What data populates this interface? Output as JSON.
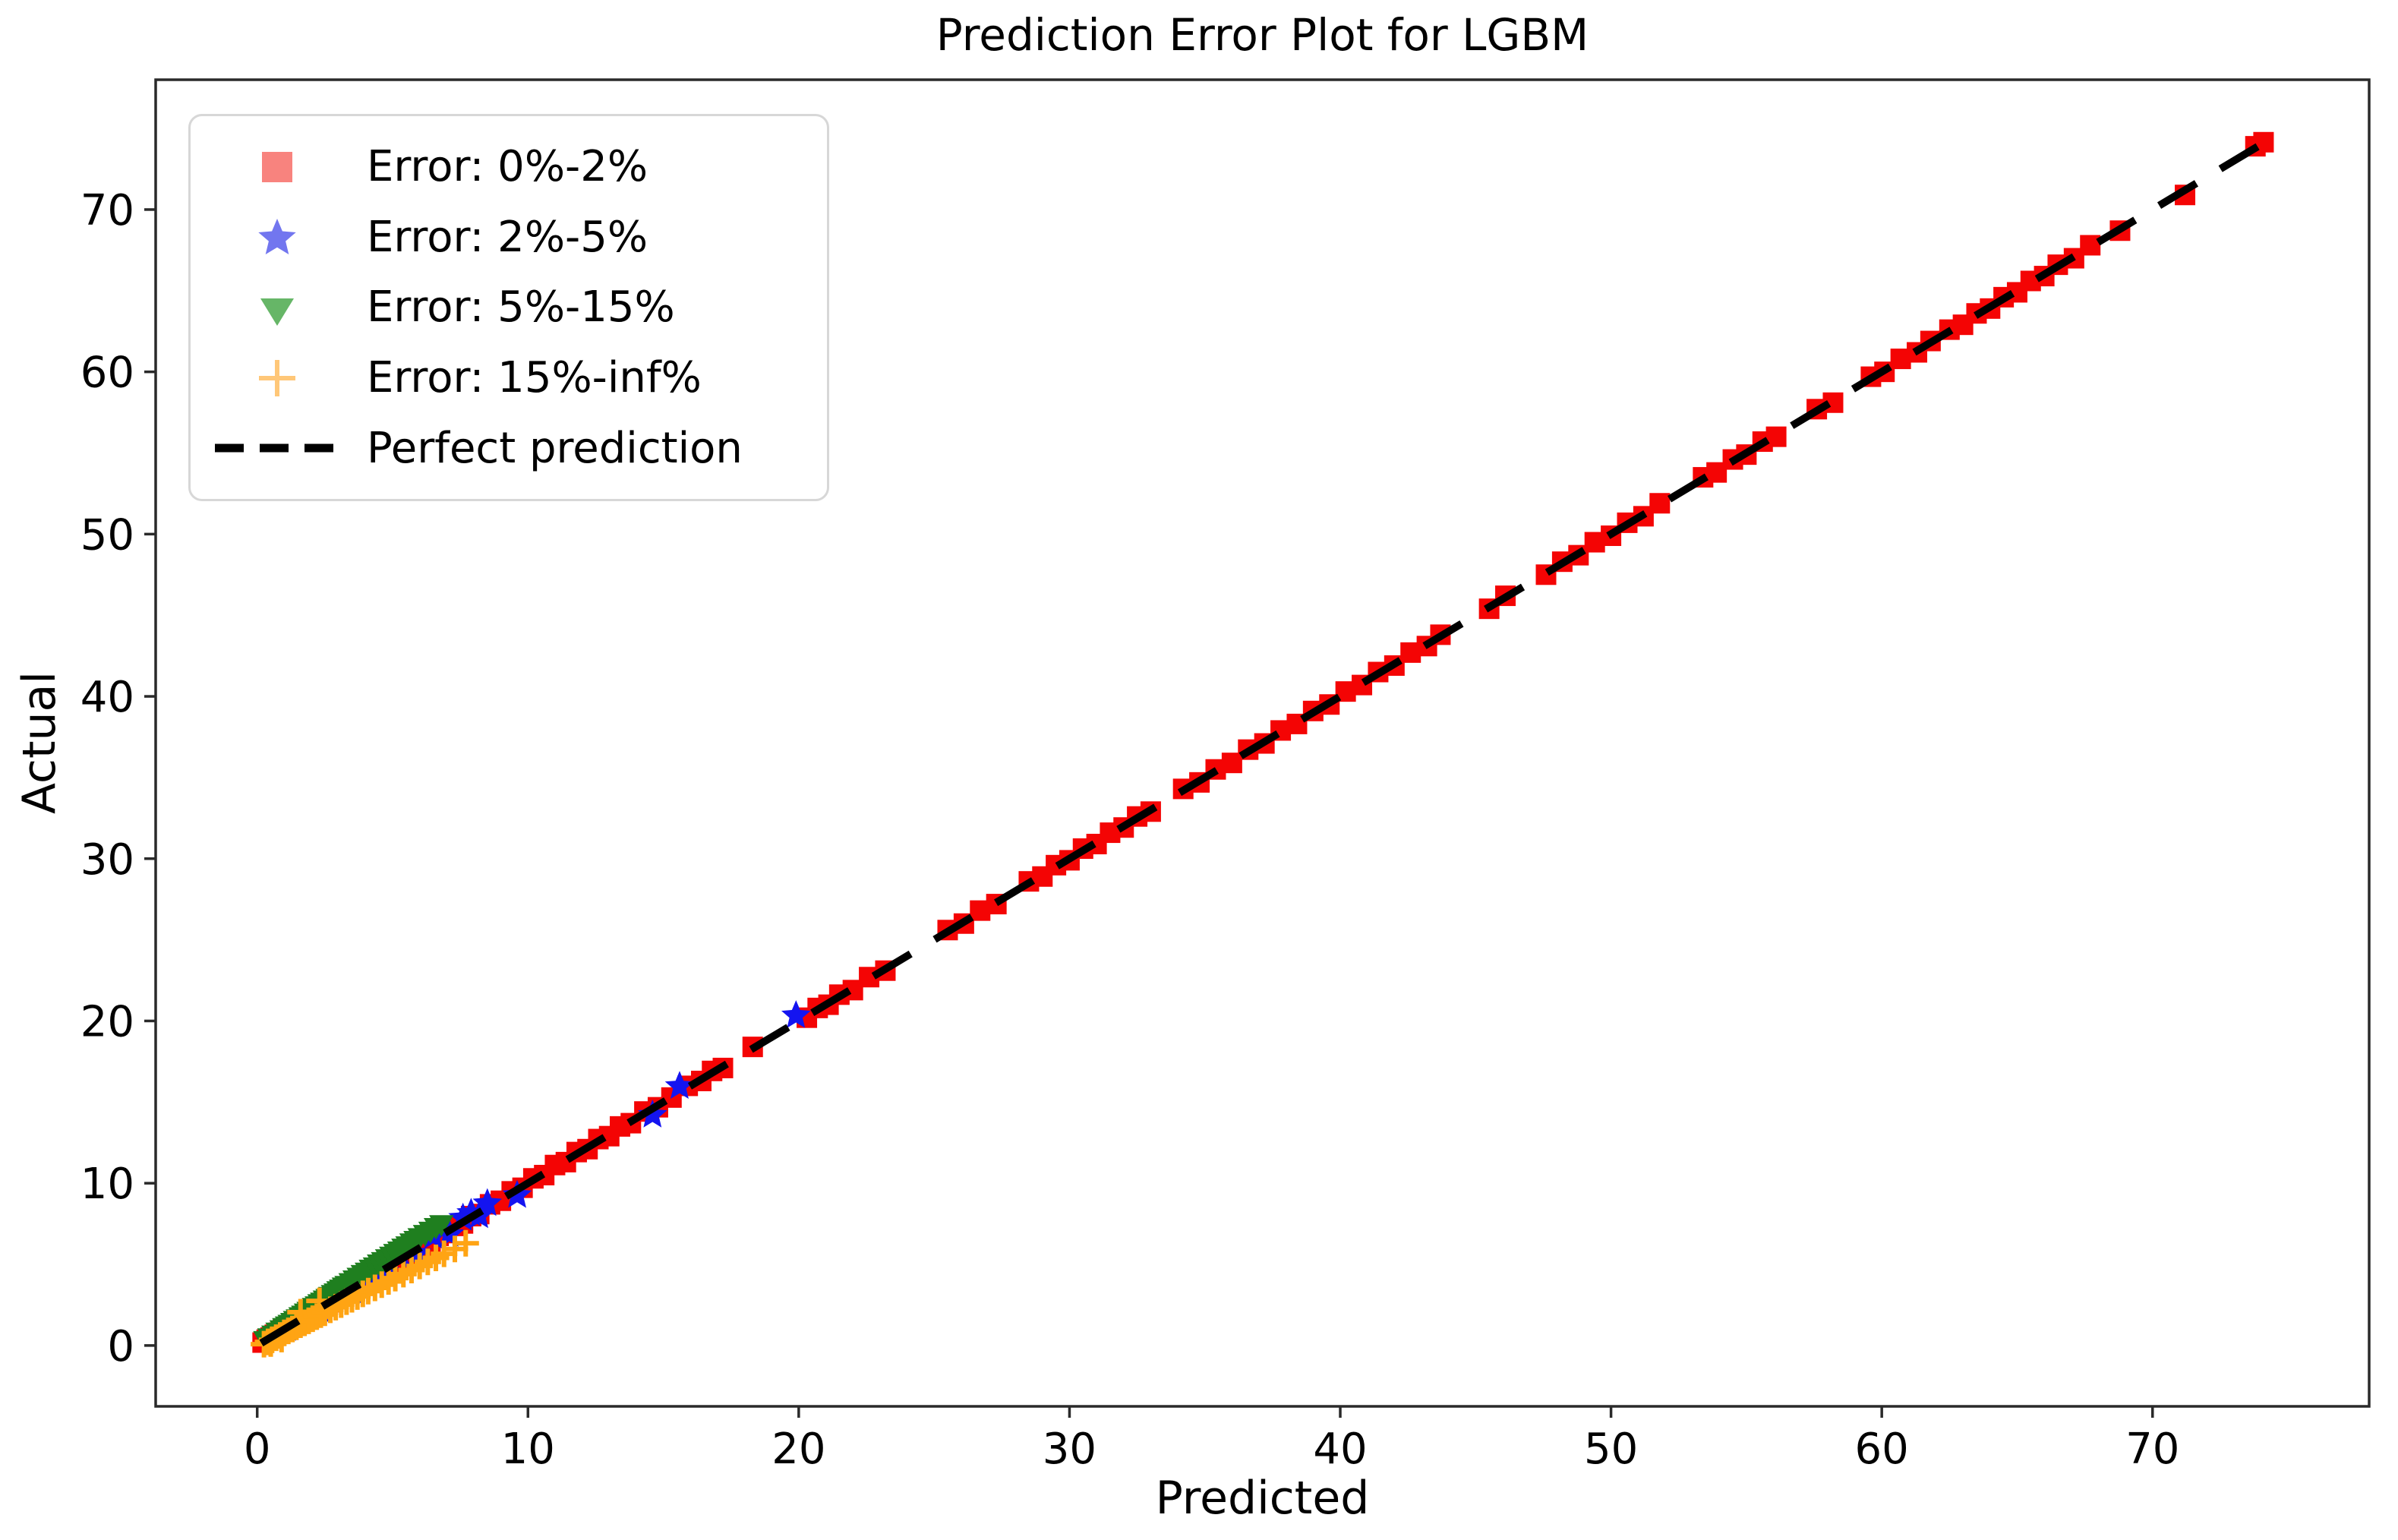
{
  "chart_data": {
    "type": "scatter",
    "title": "Prediction Error Plot for LGBM",
    "xlabel": "Predicted",
    "ylabel": "Actual",
    "xlim": [
      -3.75,
      78.0
    ],
    "ylim": [
      -3.75,
      78.0
    ],
    "x_ticks": [
      0,
      10,
      20,
      30,
      40,
      50,
      60,
      70
    ],
    "y_ticks": [
      0,
      10,
      20,
      30,
      40,
      50,
      60,
      70
    ],
    "grid": false,
    "legend_position": "upper left",
    "axis_color": "#2a2a2a",
    "tick_label_color": "#000000",
    "series": [
      {
        "name": "Error: 0%-2%",
        "marker": "square",
        "color": "#f40404",
        "points": [
          [
            0.2,
            0.18
          ],
          [
            0.35,
            0.36
          ],
          [
            0.5,
            0.49
          ],
          [
            0.65,
            0.66
          ],
          [
            0.8,
            0.79
          ],
          [
            0.95,
            0.96
          ],
          [
            1.1,
            1.08
          ],
          [
            1.3,
            1.32
          ],
          [
            1.5,
            1.48
          ],
          [
            1.7,
            1.72
          ],
          [
            1.9,
            1.88
          ],
          [
            2.1,
            2.12
          ],
          [
            2.3,
            2.28
          ],
          [
            2.5,
            2.52
          ],
          [
            2.7,
            2.67
          ],
          [
            2.9,
            2.93
          ],
          [
            3.1,
            3.07
          ],
          [
            3.3,
            3.33
          ],
          [
            3.5,
            3.46
          ],
          [
            3.7,
            3.73
          ],
          [
            3.9,
            3.86
          ],
          [
            4.1,
            4.14
          ],
          [
            4.35,
            4.3
          ],
          [
            4.6,
            4.64
          ],
          [
            4.85,
            4.8
          ],
          [
            5.1,
            5.15
          ],
          [
            5.35,
            5.3
          ],
          [
            5.6,
            5.65
          ],
          [
            5.85,
            5.8
          ],
          [
            6.1,
            6.16
          ],
          [
            6.4,
            6.33
          ],
          [
            6.7,
            6.76
          ],
          [
            7.0,
            6.93
          ],
          [
            7.3,
            7.37
          ],
          [
            7.6,
            7.52
          ],
          [
            7.9,
            7.97
          ],
          [
            8.2,
            8.1
          ],
          [
            8.6,
            8.7
          ],
          [
            9.0,
            8.92
          ],
          [
            9.4,
            9.5
          ],
          [
            9.8,
            9.72
          ],
          [
            10.2,
            10.3
          ],
          [
            10.6,
            10.5
          ],
          [
            11.0,
            11.12
          ],
          [
            11.4,
            11.3
          ],
          [
            11.8,
            11.92
          ],
          [
            12.2,
            12.1
          ],
          [
            12.6,
            12.72
          ],
          [
            13.0,
            12.9
          ],
          [
            13.4,
            13.5
          ],
          [
            13.8,
            13.7
          ],
          [
            14.3,
            14.42
          ],
          [
            14.8,
            14.68
          ],
          [
            15.3,
            15.28
          ],
          [
            15.9,
            16.0
          ],
          [
            16.4,
            16.3
          ],
          [
            16.8,
            16.92
          ],
          [
            17.2,
            17.1
          ],
          [
            18.3,
            18.4
          ],
          [
            20.3,
            20.2
          ],
          [
            20.7,
            20.8
          ],
          [
            21.1,
            21.0
          ],
          [
            21.5,
            21.62
          ],
          [
            22.0,
            21.9
          ],
          [
            22.6,
            22.7
          ],
          [
            23.2,
            23.1
          ],
          [
            25.5,
            25.6
          ],
          [
            26.1,
            26.0
          ],
          [
            26.7,
            26.8
          ],
          [
            27.3,
            27.2
          ],
          [
            28.5,
            28.6
          ],
          [
            29.0,
            28.9
          ],
          [
            29.5,
            29.6
          ],
          [
            30.0,
            29.9
          ],
          [
            30.5,
            30.62
          ],
          [
            31.0,
            30.9
          ],
          [
            31.5,
            31.6
          ],
          [
            32.0,
            31.92
          ],
          [
            32.5,
            32.6
          ],
          [
            33.0,
            32.9
          ],
          [
            34.2,
            34.3
          ],
          [
            34.8,
            34.7
          ],
          [
            35.4,
            35.5
          ],
          [
            36.0,
            35.9
          ],
          [
            36.6,
            36.72
          ],
          [
            37.2,
            37.1
          ],
          [
            37.8,
            37.9
          ],
          [
            38.4,
            38.3
          ],
          [
            39.0,
            39.1
          ],
          [
            39.6,
            39.5
          ],
          [
            40.2,
            40.3
          ],
          [
            40.8,
            40.7
          ],
          [
            41.4,
            41.5
          ],
          [
            42.0,
            41.9
          ],
          [
            42.6,
            42.7
          ],
          [
            43.2,
            43.1
          ],
          [
            43.7,
            43.8
          ],
          [
            45.5,
            45.4
          ],
          [
            46.1,
            46.2
          ],
          [
            47.6,
            47.5
          ],
          [
            48.2,
            48.3
          ],
          [
            48.8,
            48.7
          ],
          [
            49.4,
            49.5
          ],
          [
            50.0,
            49.9
          ],
          [
            50.6,
            50.7
          ],
          [
            51.2,
            51.1
          ],
          [
            51.8,
            51.9
          ],
          [
            53.4,
            53.5
          ],
          [
            53.9,
            53.8
          ],
          [
            54.5,
            54.6
          ],
          [
            55.0,
            54.9
          ],
          [
            55.6,
            55.7
          ],
          [
            56.1,
            56.0
          ],
          [
            57.6,
            57.7
          ],
          [
            58.2,
            58.1
          ],
          [
            59.6,
            59.7
          ],
          [
            60.1,
            60.0
          ],
          [
            60.7,
            60.8
          ],
          [
            61.3,
            61.2
          ],
          [
            61.8,
            61.9
          ],
          [
            62.5,
            62.6
          ],
          [
            63.0,
            62.9
          ],
          [
            63.5,
            63.6
          ],
          [
            64.0,
            63.9
          ],
          [
            64.5,
            64.6
          ],
          [
            65.0,
            64.9
          ],
          [
            65.5,
            65.6
          ],
          [
            66.0,
            65.9
          ],
          [
            66.5,
            66.6
          ],
          [
            67.1,
            67.0
          ],
          [
            67.7,
            67.8
          ],
          [
            68.8,
            68.7
          ],
          [
            71.2,
            70.9
          ],
          [
            73.8,
            73.9
          ],
          [
            74.1,
            74.15
          ]
        ]
      },
      {
        "name": "Error: 2%-5%",
        "marker": "star",
        "color": "#1414f0",
        "points": [
          [
            0.6,
            0.63
          ],
          [
            1.1,
            1.05
          ],
          [
            1.7,
            1.78
          ],
          [
            2.3,
            2.21
          ],
          [
            2.9,
            3.0
          ],
          [
            3.0,
            2.87
          ],
          [
            3.5,
            3.37
          ],
          [
            4.1,
            4.25
          ],
          [
            4.7,
            4.53
          ],
          [
            5.3,
            5.5
          ],
          [
            5.9,
            5.68
          ],
          [
            6.5,
            6.73
          ],
          [
            7.1,
            6.85
          ],
          [
            7.6,
            7.85
          ],
          [
            7.9,
            8.15
          ],
          [
            8.2,
            8.0
          ],
          [
            8.5,
            8.75
          ],
          [
            9.6,
            9.25
          ],
          [
            14.6,
            14.2
          ],
          [
            15.6,
            15.97
          ],
          [
            19.9,
            20.33
          ]
        ]
      },
      {
        "name": "Error: 5%-15%",
        "marker": "triangle_down",
        "color": "#1f7f1f",
        "points": [
          [
            0.3,
            0.38
          ],
          [
            0.45,
            0.55
          ],
          [
            0.6,
            0.72
          ],
          [
            0.75,
            0.9
          ],
          [
            0.9,
            1.05
          ],
          [
            1.0,
            1.18
          ],
          [
            1.1,
            1.28
          ],
          [
            1.2,
            1.38
          ],
          [
            1.3,
            1.5
          ],
          [
            1.4,
            1.62
          ],
          [
            1.5,
            1.72
          ],
          [
            1.6,
            1.85
          ],
          [
            1.7,
            1.95
          ],
          [
            1.8,
            2.08
          ],
          [
            1.9,
            2.18
          ],
          [
            2.0,
            2.3
          ],
          [
            2.1,
            2.42
          ],
          [
            2.2,
            2.52
          ],
          [
            2.3,
            2.65
          ],
          [
            2.4,
            2.75
          ],
          [
            2.5,
            2.88
          ],
          [
            2.6,
            2.98
          ],
          [
            2.7,
            3.1
          ],
          [
            2.8,
            3.22
          ],
          [
            2.9,
            3.32
          ],
          [
            3.0,
            3.45
          ],
          [
            3.1,
            3.55
          ],
          [
            3.2,
            3.68
          ],
          [
            3.3,
            3.78
          ],
          [
            3.45,
            3.95
          ],
          [
            3.6,
            4.12
          ],
          [
            3.75,
            4.28
          ],
          [
            3.9,
            4.45
          ],
          [
            4.05,
            4.6
          ],
          [
            4.2,
            4.78
          ],
          [
            4.35,
            4.92
          ],
          [
            4.5,
            5.1
          ],
          [
            4.65,
            5.25
          ],
          [
            4.8,
            5.42
          ],
          [
            4.95,
            5.58
          ],
          [
            5.0,
            5.45
          ],
          [
            5.1,
            5.75
          ],
          [
            5.25,
            5.9
          ],
          [
            5.4,
            6.08
          ],
          [
            5.55,
            6.22
          ],
          [
            5.7,
            6.4
          ],
          [
            5.85,
            6.55
          ],
          [
            6.0,
            6.72
          ],
          [
            6.2,
            6.92
          ],
          [
            6.4,
            7.12
          ],
          [
            6.6,
            7.35
          ],
          [
            6.8,
            7.52
          ]
        ]
      },
      {
        "name": "Error: 15%-inf%",
        "marker": "plus",
        "color": "#ffa413",
        "points": [
          [
            0.25,
            0.08
          ],
          [
            0.4,
            0.22
          ],
          [
            0.5,
            0.12
          ],
          [
            0.55,
            0.35
          ],
          [
            0.7,
            0.48
          ],
          [
            0.85,
            0.62
          ],
          [
            0.9,
            0.4
          ],
          [
            1.0,
            0.78
          ],
          [
            1.15,
            0.9
          ],
          [
            1.3,
            1.02
          ],
          [
            1.45,
            1.15
          ],
          [
            1.6,
            1.28
          ],
          [
            1.6,
            2.05
          ],
          [
            1.75,
            1.4
          ],
          [
            1.9,
            1.52
          ],
          [
            2.05,
            1.65
          ],
          [
            2.2,
            1.78
          ],
          [
            2.3,
            2.75
          ],
          [
            2.35,
            1.9
          ],
          [
            2.5,
            2.02
          ],
          [
            2.7,
            2.2
          ],
          [
            2.9,
            2.36
          ],
          [
            3.1,
            2.52
          ],
          [
            3.3,
            2.7
          ],
          [
            3.5,
            2.85
          ],
          [
            3.7,
            3.02
          ],
          [
            3.9,
            3.18
          ],
          [
            4.1,
            3.35
          ],
          [
            4.35,
            3.55
          ],
          [
            4.6,
            3.75
          ],
          [
            4.85,
            3.95
          ],
          [
            5.1,
            4.15
          ],
          [
            5.4,
            4.4
          ],
          [
            5.7,
            4.65
          ],
          [
            6.0,
            4.9
          ],
          [
            6.3,
            5.15
          ],
          [
            6.6,
            5.4
          ],
          [
            6.9,
            5.65
          ],
          [
            7.3,
            5.95
          ],
          [
            7.7,
            6.3
          ]
        ]
      }
    ],
    "reference_line": {
      "label": "Perfect prediction",
      "color": "#000000",
      "style": "dashed",
      "from": [
        0.15,
        0.15
      ],
      "to": [
        74.1,
        74.1
      ]
    },
    "legend": {
      "entries": [
        {
          "label": "Error: 0%-2%",
          "marker": "square",
          "color": "#f8837e"
        },
        {
          "label": "Error: 2%-5%",
          "marker": "star",
          "color": "#7276ef"
        },
        {
          "label": "Error: 5%-15%",
          "marker": "triangle_down",
          "color": "#66b667"
        },
        {
          "label": "Error: 15%-inf%",
          "marker": "plus",
          "color": "#ffc778"
        },
        {
          "label": "Perfect prediction",
          "marker": "dashed_line",
          "color": "#000000"
        }
      ]
    }
  }
}
